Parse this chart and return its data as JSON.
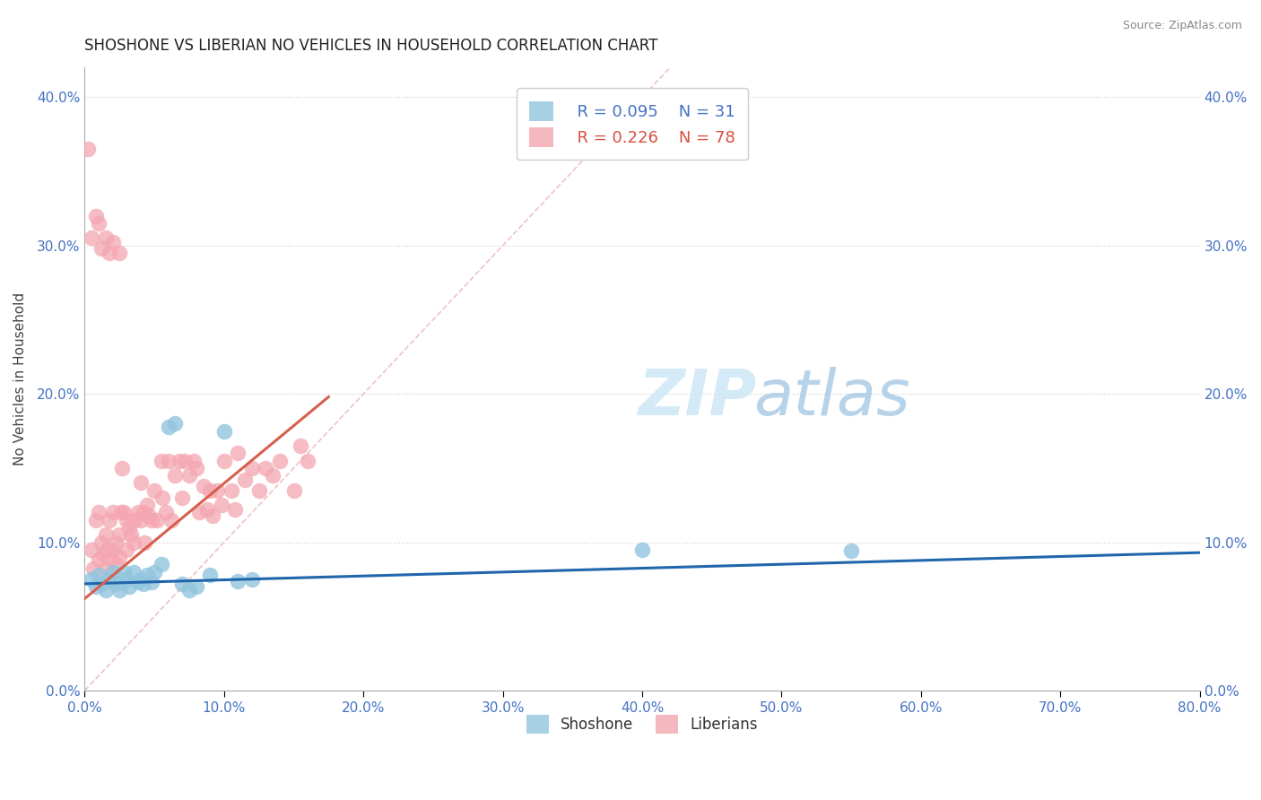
{
  "title": "SHOSHONE VS LIBERIAN NO VEHICLES IN HOUSEHOLD CORRELATION CHART",
  "source_text": "Source: ZipAtlas.com",
  "ylabel": "No Vehicles in Household",
  "xlim": [
    0.0,
    0.8
  ],
  "ylim": [
    0.0,
    0.42
  ],
  "xticks": [
    0.0,
    0.1,
    0.2,
    0.3,
    0.4,
    0.5,
    0.6,
    0.7,
    0.8
  ],
  "yticks": [
    0.0,
    0.1,
    0.2,
    0.3,
    0.4
  ],
  "legend_r_shoshone": "R = 0.095",
  "legend_n_shoshone": "N = 31",
  "legend_r_liberian": "R = 0.226",
  "legend_n_liberian": "N = 78",
  "legend_label_shoshone": "Shoshone",
  "legend_label_liberian": "Liberians",
  "shoshone_color": "#92c5de",
  "liberian_color": "#f4a6b0",
  "shoshone_line_color": "#2166ac",
  "liberian_line_color": "#d6604d",
  "diagonal_color": "#e8b4b8",
  "background_color": "#ffffff",
  "shoshone_x": [
    0.005,
    0.008,
    0.01,
    0.012,
    0.015,
    0.018,
    0.02,
    0.022,
    0.025,
    0.028,
    0.03,
    0.032,
    0.035,
    0.038,
    0.04,
    0.042,
    0.045,
    0.048,
    0.05,
    0.055,
    0.06,
    0.065,
    0.07,
    0.075,
    0.08,
    0.09,
    0.1,
    0.11,
    0.12,
    0.4,
    0.55
  ],
  "shoshone_y": [
    0.075,
    0.07,
    0.078,
    0.072,
    0.068,
    0.075,
    0.08,
    0.072,
    0.068,
    0.08,
    0.075,
    0.07,
    0.08,
    0.073,
    0.075,
    0.072,
    0.078,
    0.073,
    0.08,
    0.085,
    0.178,
    0.18,
    0.072,
    0.068,
    0.07,
    0.078,
    0.175,
    0.074,
    0.075,
    0.095,
    0.094
  ],
  "liberian_x": [
    0.002,
    0.005,
    0.006,
    0.008,
    0.01,
    0.01,
    0.012,
    0.013,
    0.015,
    0.015,
    0.016,
    0.018,
    0.019,
    0.02,
    0.02,
    0.022,
    0.023,
    0.025,
    0.025,
    0.026,
    0.027,
    0.028,
    0.03,
    0.03,
    0.032,
    0.033,
    0.035,
    0.036,
    0.038,
    0.04,
    0.04,
    0.042,
    0.043,
    0.045,
    0.046,
    0.048,
    0.05,
    0.052,
    0.055,
    0.056,
    0.058,
    0.06,
    0.062,
    0.065,
    0.068,
    0.07,
    0.072,
    0.075,
    0.078,
    0.08,
    0.082,
    0.085,
    0.088,
    0.09,
    0.092,
    0.095,
    0.098,
    0.1,
    0.105,
    0.108,
    0.11,
    0.115,
    0.12,
    0.125,
    0.13,
    0.135,
    0.14,
    0.15,
    0.155,
    0.16,
    0.005,
    0.008,
    0.01,
    0.012,
    0.015,
    0.018,
    0.02,
    0.025
  ],
  "liberian_y": [
    0.365,
    0.095,
    0.082,
    0.115,
    0.12,
    0.088,
    0.1,
    0.092,
    0.105,
    0.082,
    0.095,
    0.115,
    0.088,
    0.12,
    0.095,
    0.1,
    0.085,
    0.105,
    0.09,
    0.12,
    0.15,
    0.12,
    0.115,
    0.095,
    0.11,
    0.105,
    0.1,
    0.115,
    0.12,
    0.14,
    0.115,
    0.12,
    0.1,
    0.125,
    0.118,
    0.115,
    0.135,
    0.115,
    0.155,
    0.13,
    0.12,
    0.155,
    0.115,
    0.145,
    0.155,
    0.13,
    0.155,
    0.145,
    0.155,
    0.15,
    0.12,
    0.138,
    0.122,
    0.135,
    0.118,
    0.135,
    0.125,
    0.155,
    0.135,
    0.122,
    0.16,
    0.142,
    0.15,
    0.135,
    0.15,
    0.145,
    0.155,
    0.135,
    0.165,
    0.155,
    0.305,
    0.32,
    0.315,
    0.298,
    0.305,
    0.295,
    0.302,
    0.295
  ],
  "shoshone_line_x": [
    0.0,
    0.8
  ],
  "shoshone_line_y": [
    0.072,
    0.093
  ],
  "liberian_line_x": [
    0.0,
    0.175
  ],
  "liberian_line_y": [
    0.062,
    0.198
  ]
}
